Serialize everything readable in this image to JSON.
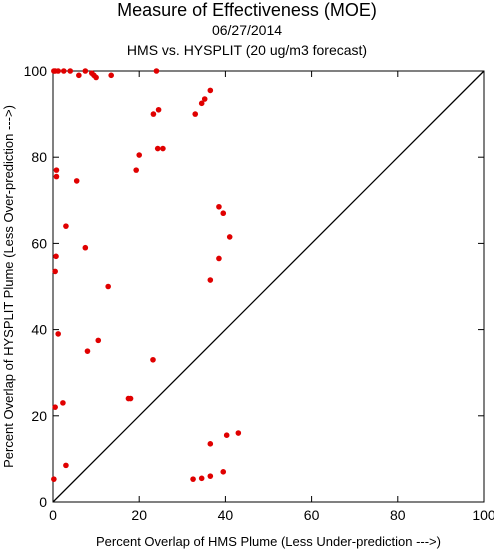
{
  "chart_data": {
    "type": "scatter",
    "title": "Measure of Effectiveness (MOE)",
    "subtitle": "06/27/2014",
    "subtitle2": "HMS vs. HYSPLIT  (20 ug/m3 forecast)",
    "xlabel": "Percent Overlap of HMS Plume (Less Under-prediction --->)",
    "ylabel": "Percent Overlap of HYSPLIT Plume (Less Over-prediction --->)",
    "xlim": [
      0,
      100
    ],
    "ylim": [
      0,
      100
    ],
    "xticks": [
      0,
      20,
      40,
      60,
      80,
      100
    ],
    "yticks": [
      0,
      20,
      40,
      60,
      80,
      100
    ],
    "grid": false,
    "reference_line": "y = x",
    "marker_color": "#e00000",
    "line_color": "#000000",
    "points": [
      [
        0.2,
        100
      ],
      [
        0.5,
        100
      ],
      [
        1.2,
        100
      ],
      [
        2.5,
        100
      ],
      [
        4.0,
        100
      ],
      [
        6.0,
        99
      ],
      [
        7.5,
        100
      ],
      [
        9.0,
        99.5
      ],
      [
        9.5,
        99
      ],
      [
        10.0,
        98.5
      ],
      [
        13.5,
        99
      ],
      [
        24.0,
        100
      ],
      [
        23.3,
        90
      ],
      [
        24.5,
        91
      ],
      [
        33.0,
        90
      ],
      [
        34.5,
        92.5
      ],
      [
        35.2,
        93.5
      ],
      [
        36.5,
        95.5
      ],
      [
        24.3,
        82
      ],
      [
        25.5,
        82
      ],
      [
        20.0,
        80.5
      ],
      [
        0.8,
        77
      ],
      [
        0.8,
        75.5
      ],
      [
        5.5,
        74.5
      ],
      [
        19.3,
        77
      ],
      [
        38.5,
        68.5
      ],
      [
        39.5,
        67
      ],
      [
        3.0,
        64
      ],
      [
        7.5,
        59
      ],
      [
        41.0,
        61.5
      ],
      [
        38.5,
        56.5
      ],
      [
        36.5,
        51.5
      ],
      [
        0.7,
        57
      ],
      [
        0.5,
        53.5
      ],
      [
        12.8,
        50
      ],
      [
        1.2,
        39
      ],
      [
        10.5,
        37.5
      ],
      [
        8.0,
        35
      ],
      [
        23.2,
        33
      ],
      [
        17.5,
        24
      ],
      [
        18.0,
        24
      ],
      [
        2.3,
        23
      ],
      [
        0.5,
        22
      ],
      [
        43.0,
        16
      ],
      [
        40.3,
        15.5
      ],
      [
        36.5,
        13.5
      ],
      [
        3.0,
        8.5
      ],
      [
        39.5,
        7
      ],
      [
        36.5,
        6
      ],
      [
        34.5,
        5.5
      ],
      [
        32.5,
        5.3
      ],
      [
        0.2,
        5.3
      ]
    ]
  }
}
